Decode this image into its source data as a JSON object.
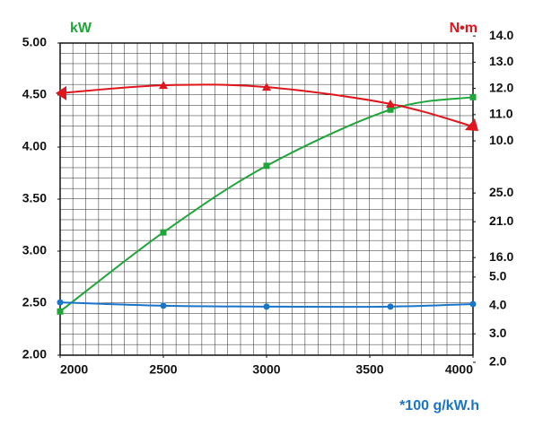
{
  "chart_data": {
    "type": "line",
    "left_unit": "kW",
    "right_unit": "N•m",
    "bottom_unit": "*100 g/kW.h",
    "left_unit_color": "#1fa53a",
    "right_unit_color": "#e0161e",
    "bottom_unit_color": "#1a74c9",
    "x": [
      2000,
      2500,
      3000,
      3600,
      4000
    ],
    "xlim": [
      2000,
      4000
    ],
    "xticks": [
      2000,
      2500,
      3000,
      3500,
      4000
    ],
    "ylim": [
      2,
      5
    ],
    "yticks": [
      {
        "value": 2,
        "label": "2.00"
      },
      {
        "value": 2.5,
        "label": "2.50"
      },
      {
        "value": 3,
        "label": "3.00"
      },
      {
        "value": 3.5,
        "label": "3.50"
      },
      {
        "value": 4,
        "label": "4.00"
      },
      {
        "value": 4.5,
        "label": "4.50"
      },
      {
        "value": 5,
        "label": "5.00"
      }
    ],
    "y2lim": [
      1.83,
      13.73
    ],
    "y2ticks": [
      {
        "value": 10,
        "label": "10.0"
      },
      {
        "value": 11,
        "label": "11.0"
      },
      {
        "value": 12,
        "label": "12.0"
      },
      {
        "value": 13,
        "label": "13.0"
      },
      {
        "value": 14,
        "label": "14.0"
      }
    ],
    "y3lim": [
      2.4,
      45.9
    ],
    "y3ticks": [
      {
        "value": 16,
        "label": "16.0"
      },
      {
        "value": 21,
        "label": "21.0"
      },
      {
        "value": 25,
        "label": "25.0"
      }
    ],
    "y4lim": [
      2.25,
      13.24
    ],
    "y4ticks": [
      {
        "value": 2,
        "label": "2.0"
      },
      {
        "value": 3,
        "label": "3.0"
      },
      {
        "value": 4,
        "label": "4.0"
      },
      {
        "value": 5,
        "label": "5.0"
      }
    ],
    "grid": true,
    "series": [
      {
        "color": "#1fa53a",
        "marker": "square",
        "axis": "y",
        "values": [
          2.42,
          3.18,
          3.82,
          4.36,
          4.48
        ]
      },
      {
        "color": "#e0161e",
        "marker": "triangle",
        "axis": "y2",
        "values": [
          11.82,
          12.12,
          12.05,
          11.41,
          10.55
        ]
      },
      {
        "color": "#1a74c9",
        "marker": "circle",
        "axis": "y4",
        "values": [
          4.11,
          3.99,
          3.96,
          3.96,
          4.05
        ]
      }
    ]
  }
}
